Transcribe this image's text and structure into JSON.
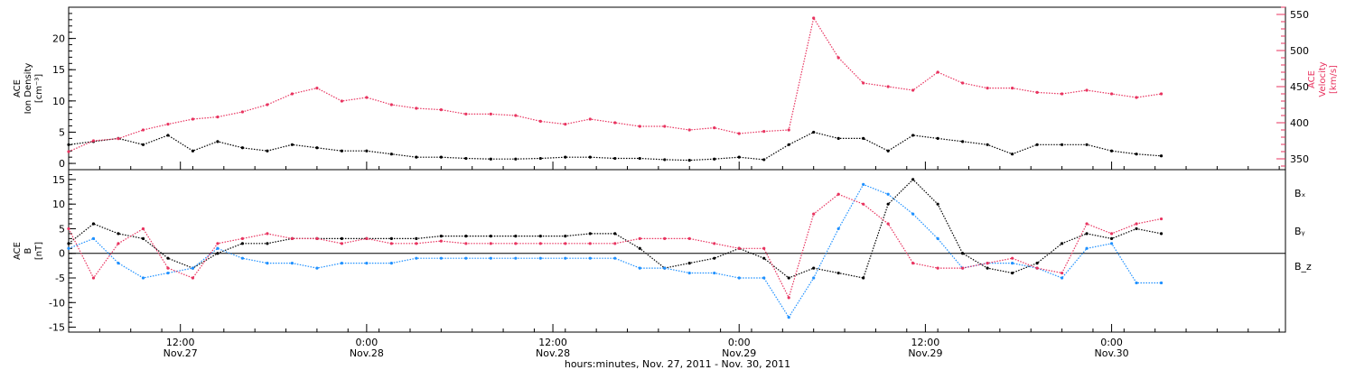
{
  "chart_data": [
    {
      "type": "scatter",
      "panel": "top",
      "left_axis": {
        "label_lines": [
          "ACE",
          "Ion Density",
          "[cm⁻³]"
        ],
        "ylim": [
          -1,
          25
        ],
        "ticks": [
          0,
          5,
          10,
          15,
          20
        ],
        "color": "#000000"
      },
      "right_axis": {
        "label_lines": [
          "ACE",
          "Velocity",
          "[km/s]"
        ],
        "ylim": [
          335,
          560
        ],
        "ticks": [
          350,
          400,
          450,
          500,
          550
        ],
        "color": "#e8335f"
      },
      "xlim": [
        0,
        98
      ],
      "series": [
        {
          "axis": "left",
          "color": "#000000",
          "x": [
            0,
            2,
            4,
            6,
            8,
            10,
            12,
            14,
            16,
            18,
            20,
            22,
            24,
            26,
            28,
            30,
            32,
            34,
            36,
            38,
            40,
            42,
            44,
            46,
            48,
            50,
            52,
            54,
            56,
            58,
            60,
            62,
            64,
            66,
            68,
            70,
            72,
            74,
            76,
            78,
            80,
            82,
            84,
            86,
            88
          ],
          "y": [
            3,
            3.5,
            4,
            3,
            4.5,
            2,
            3.5,
            2.5,
            2,
            3,
            2.5,
            2,
            2,
            1.5,
            1,
            1,
            0.8,
            0.7,
            0.7,
            0.8,
            1,
            1,
            0.8,
            0.8,
            0.6,
            0.5,
            0.7,
            1,
            0.6,
            3,
            5,
            4,
            4,
            2,
            4.5,
            4,
            3.5,
            3,
            1.5,
            3,
            3,
            3,
            2,
            1.5,
            1.2
          ]
        },
        {
          "axis": "right",
          "color": "#e8335f",
          "x": [
            0,
            2,
            4,
            6,
            8,
            10,
            12,
            14,
            16,
            18,
            20,
            22,
            24,
            26,
            28,
            30,
            32,
            34,
            36,
            38,
            40,
            42,
            44,
            46,
            48,
            50,
            52,
            54,
            56,
            58,
            60,
            62,
            64,
            66,
            68,
            70,
            72,
            74,
            76,
            78,
            80,
            82,
            84,
            86,
            88
          ],
          "y": [
            360,
            375,
            378,
            390,
            398,
            405,
            408,
            415,
            425,
            440,
            448,
            430,
            435,
            425,
            420,
            418,
            412,
            412,
            410,
            402,
            398,
            405,
            400,
            395,
            395,
            390,
            393,
            385,
            388,
            390,
            545,
            490,
            455,
            450,
            445,
            470,
            455,
            448,
            448,
            442,
            440,
            445,
            440,
            435,
            440
          ]
        }
      ]
    },
    {
      "type": "scatter",
      "panel": "bottom",
      "left_axis": {
        "label_lines": [
          "ACE",
          "B",
          "[nT]"
        ],
        "ylim": [
          -16,
          17
        ],
        "ticks": [
          -15,
          -10,
          -5,
          0,
          5,
          10,
          15
        ],
        "color": "#000000"
      },
      "xlim": [
        0,
        98
      ],
      "zero_line": true,
      "legend": [
        {
          "name": "Bₓ",
          "color": "#000000"
        },
        {
          "name": "Bᵧ",
          "color": "#1e90ff"
        },
        {
          "name": "B_z",
          "color": "#e8335f"
        }
      ],
      "series": [
        {
          "name": "Bₓ",
          "color": "#000000",
          "x": [
            0,
            2,
            4,
            6,
            8,
            10,
            12,
            14,
            16,
            18,
            20,
            22,
            24,
            26,
            28,
            30,
            32,
            34,
            36,
            38,
            40,
            42,
            44,
            46,
            48,
            50,
            52,
            54,
            56,
            58,
            60,
            62,
            64,
            66,
            68,
            70,
            72,
            74,
            76,
            78,
            80,
            82,
            84,
            86,
            88
          ],
          "y": [
            2,
            6,
            4,
            3,
            -1,
            -3,
            0,
            2,
            2,
            3,
            3,
            3,
            3,
            3,
            3,
            3.5,
            3.5,
            3.5,
            3.5,
            3.5,
            3.5,
            4,
            4,
            1,
            -3,
            -2,
            -1,
            1,
            -1,
            -5,
            -3,
            -4,
            -5,
            10,
            15,
            10,
            0,
            -3,
            -4,
            -2,
            2,
            4,
            3,
            5,
            4
          ]
        },
        {
          "name": "Bᵧ",
          "color": "#1e90ff",
          "x": [
            0,
            2,
            4,
            6,
            8,
            10,
            12,
            14,
            16,
            18,
            20,
            22,
            24,
            26,
            28,
            30,
            32,
            34,
            36,
            38,
            40,
            42,
            44,
            46,
            48,
            50,
            52,
            54,
            56,
            58,
            60,
            62,
            64,
            66,
            68,
            70,
            72,
            74,
            76,
            78,
            80,
            82,
            84,
            86,
            88
          ],
          "y": [
            1,
            3,
            -2,
            -5,
            -4,
            -3,
            1,
            -1,
            -2,
            -2,
            -3,
            -2,
            -2,
            -2,
            -1,
            -1,
            -1,
            -1,
            -1,
            -1,
            -1,
            -1,
            -1,
            -3,
            -3,
            -4,
            -4,
            -5,
            -5,
            -13,
            -5,
            5,
            14,
            12,
            8,
            3,
            -3,
            -2,
            -2,
            -3,
            -5,
            1,
            2,
            -6,
            -6
          ]
        },
        {
          "name": "B_z",
          "color": "#e8335f",
          "x": [
            0,
            2,
            4,
            6,
            8,
            10,
            12,
            14,
            16,
            18,
            20,
            22,
            24,
            26,
            28,
            30,
            32,
            34,
            36,
            38,
            40,
            42,
            44,
            46,
            48,
            50,
            52,
            54,
            56,
            58,
            60,
            62,
            64,
            66,
            68,
            70,
            72,
            74,
            76,
            78,
            80,
            82,
            84,
            86,
            88
          ],
          "y": [
            5,
            -5,
            2,
            5,
            -3,
            -5,
            2,
            3,
            4,
            3,
            3,
            2,
            3,
            2,
            2,
            2.5,
            2,
            2,
            2,
            2,
            2,
            2,
            2,
            3,
            3,
            3,
            2,
            1,
            1,
            -9,
            8,
            12,
            10,
            6,
            -2,
            -3,
            -3,
            -2,
            -1,
            -3,
            -4,
            6,
            4,
            6,
            7
          ]
        }
      ]
    }
  ],
  "x_ticks": [
    {
      "x": 9,
      "time": "12:00",
      "date": "Nov.27"
    },
    {
      "x": 24,
      "time": "0:00",
      "date": "Nov.28"
    },
    {
      "x": 39,
      "time": "12:00",
      "date": "Nov.28"
    },
    {
      "x": 54,
      "time": "0:00",
      "date": "Nov.29"
    },
    {
      "x": 69,
      "time": "12:00",
      "date": "Nov.29"
    },
    {
      "x": 84,
      "time": "0:00",
      "date": "Nov.30"
    }
  ],
  "xlabel": "hours:minutes, Nov. 27, 2011 - Nov. 30, 2011"
}
